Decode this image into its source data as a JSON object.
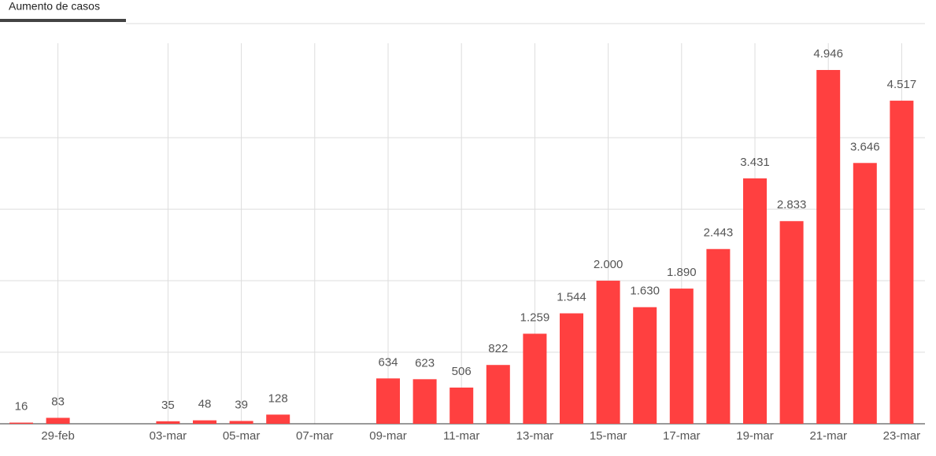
{
  "tab": "Aumento de casos",
  "chart_data": {
    "type": "bar",
    "categories": [
      null,
      "29-feb",
      null,
      null,
      "03-mar",
      null,
      "05-mar",
      null,
      "07-mar",
      null,
      "09-mar",
      null,
      "11-mar",
      null,
      "13-mar",
      null,
      "15-mar",
      null,
      "17-mar",
      null,
      "19-mar",
      null,
      "21-mar",
      null,
      "23-mar"
    ],
    "values": [
      16,
      83,
      null,
      null,
      35,
      48,
      39,
      128,
      null,
      null,
      634,
      623,
      506,
      822,
      1259,
      1544,
      2000,
      1630,
      1890,
      2443,
      3431,
      2833,
      4946,
      3646,
      4517
    ],
    "value_labels": [
      "16",
      "83",
      null,
      null,
      "35",
      "48",
      "39",
      "128",
      null,
      null,
      "634",
      "623",
      "506",
      "822",
      "1.259",
      "1.544",
      "2.000",
      "1.630",
      "1.890",
      "2.443",
      "3.431",
      "2.833",
      "4.946",
      "3.646",
      "4.517"
    ],
    "color": "#ff4040",
    "ylim": [
      0,
      5320
    ],
    "yticks": [
      0,
      1000,
      2000,
      3000,
      4000
    ],
    "grid": true
  }
}
